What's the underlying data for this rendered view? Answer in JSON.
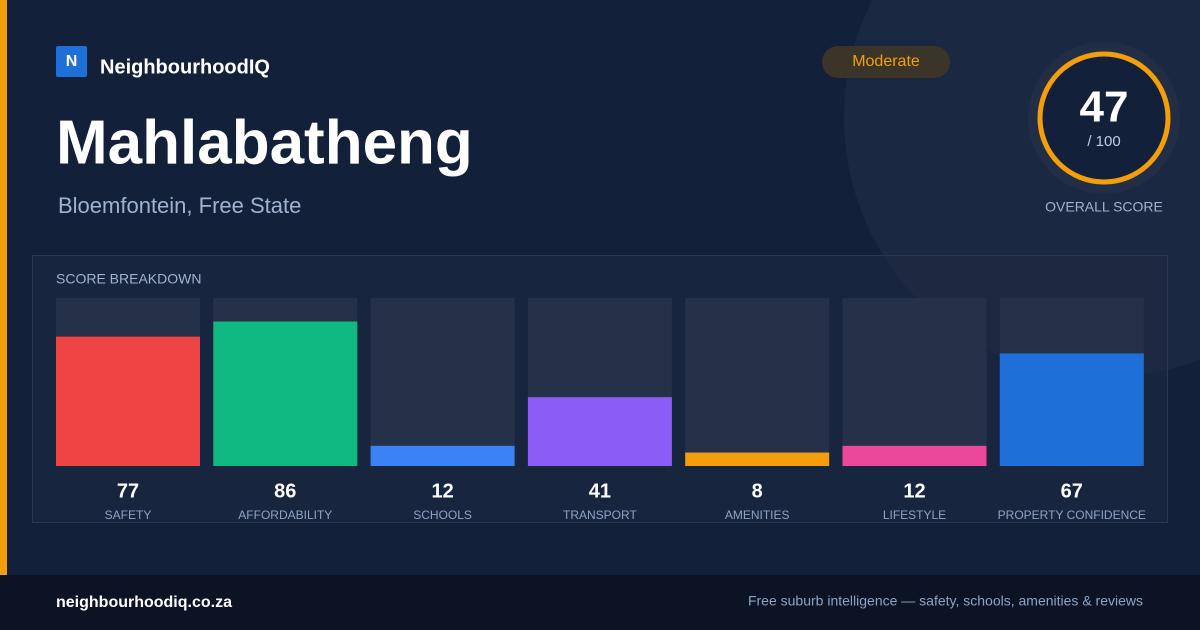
{
  "brand": {
    "logo": "N",
    "name": "NeighbourhoodIQ"
  },
  "header": {
    "title": "Mahlabatheng",
    "subtitle": "Bloemfontein, Free State",
    "badge": "Moderate"
  },
  "score": {
    "value": 47,
    "max_label": "/ 100",
    "caption": "OVERALL SCORE"
  },
  "breakdown": {
    "type": "bar",
    "title": "SCORE BREAKDOWN",
    "ylim": [
      0,
      100
    ],
    "categories": [
      "SAFETY",
      "AFFORDABILITY",
      "SCHOOLS",
      "TRANSPORT",
      "AMENITIES",
      "LIFESTYLE",
      "PROPERTY CONFIDENCE"
    ],
    "values": [
      77,
      86,
      12,
      41,
      8,
      12,
      67
    ],
    "colors": [
      "#ef4444",
      "#10b981",
      "#3b82f6",
      "#8b5cf6",
      "#f59e0b",
      "#ec4899",
      "#1f6fd8"
    ]
  },
  "footer": {
    "url": "neighbourhoodiq.co.za",
    "tagline": "Free suburb intelligence — safety, schools, amenities & reviews"
  }
}
